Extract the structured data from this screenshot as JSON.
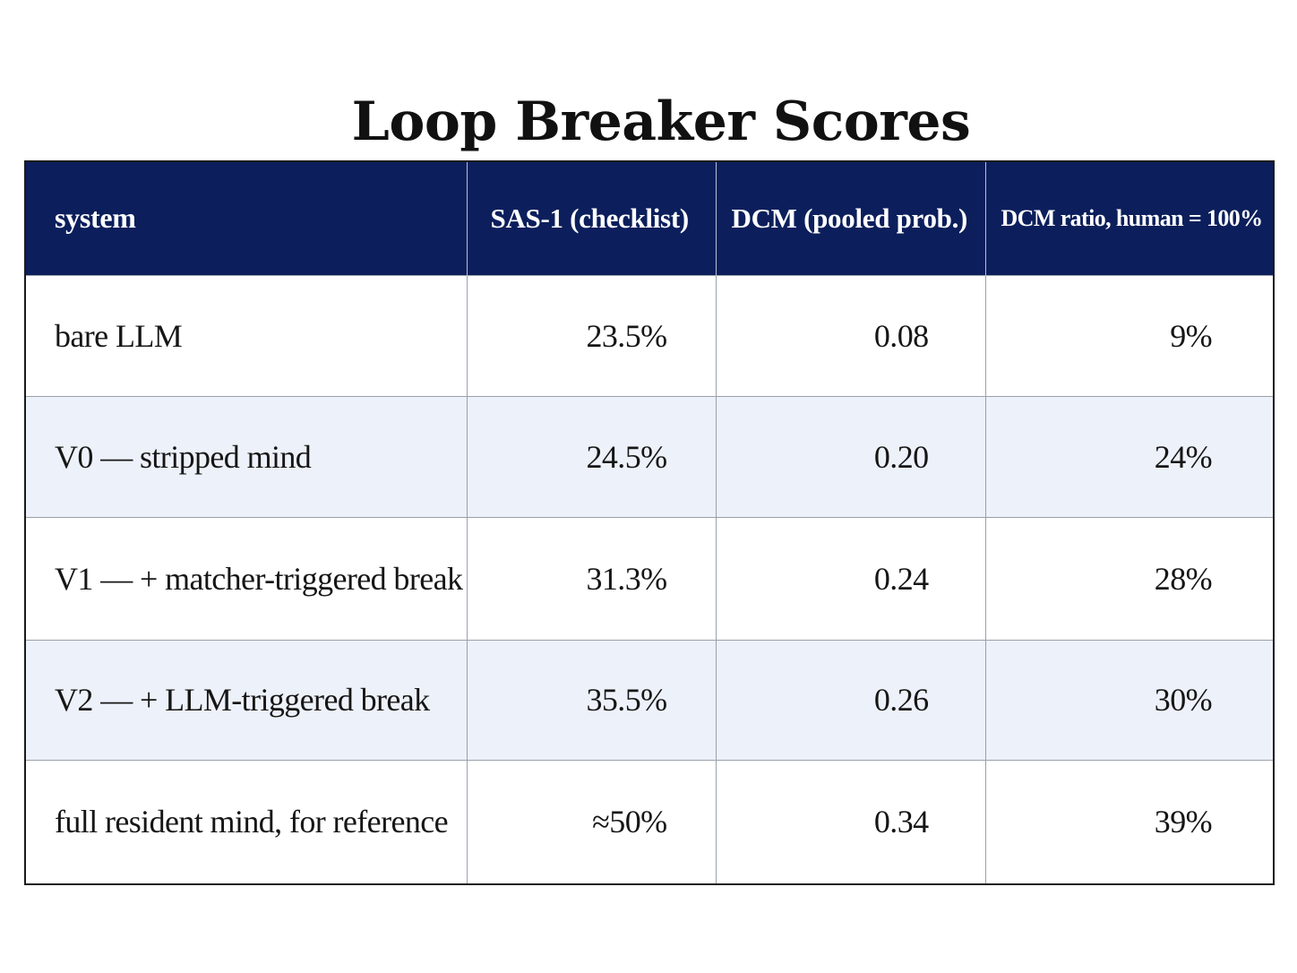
{
  "title": "Loop Breaker Scores",
  "table": {
    "headers": [
      "system",
      "SAS-1 (checklist)",
      "DCM (pooled prob.)",
      "DCM ratio, human = 100%"
    ],
    "rows": [
      {
        "system": "bare LLM",
        "sas": "23.5%",
        "dcm": "0.08",
        "ratio": "9%"
      },
      {
        "system": "V0 — stripped mind",
        "sas": "24.5%",
        "dcm": "0.20",
        "ratio": "24%"
      },
      {
        "system": "V1 — + matcher-triggered break",
        "sas": "31.3%",
        "dcm": "0.24",
        "ratio": "28%"
      },
      {
        "system": "V2 — + LLM-triggered break",
        "sas": "35.5%",
        "dcm": "0.26",
        "ratio": "30%"
      },
      {
        "system": "full resident mind, for reference",
        "sas": "≈50%",
        "dcm": "0.34",
        "ratio": "39%"
      }
    ]
  },
  "colors": {
    "header_background": "#0c1f5c",
    "header_text": "#ffffff",
    "alt_row_background": "#edf1f9",
    "row_background": "#ffffff"
  }
}
